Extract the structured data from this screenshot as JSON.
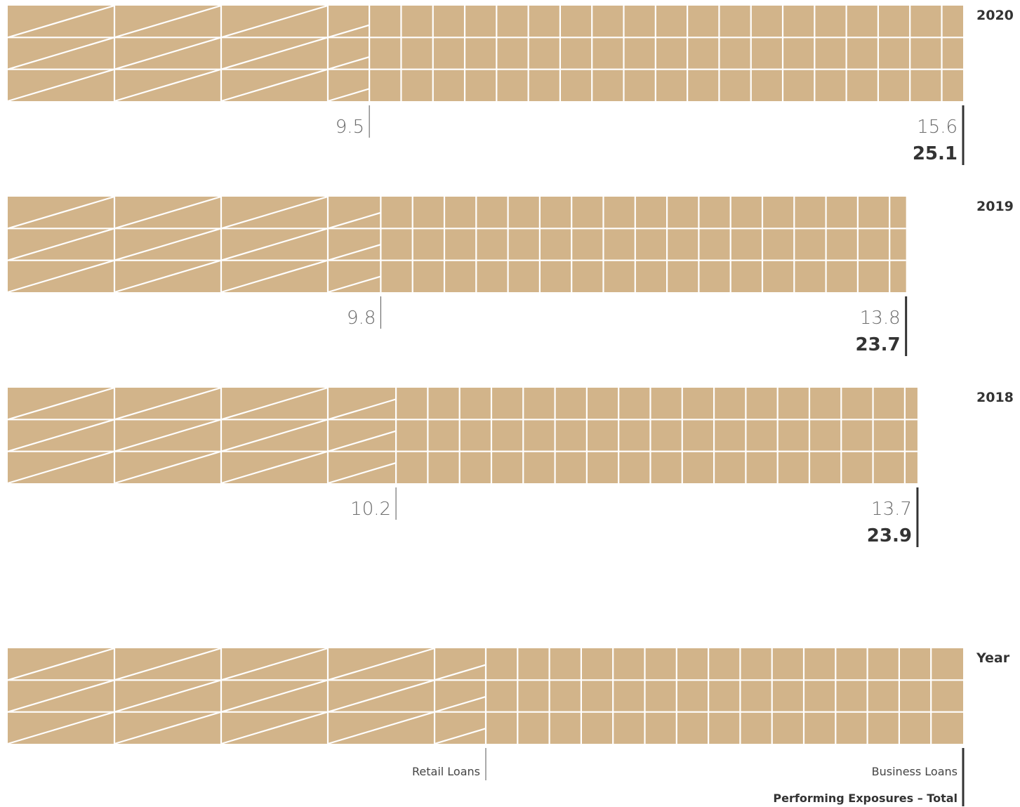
{
  "chart_data": {
    "type": "bar",
    "orientation": "horizontal",
    "stacked": true,
    "categories": [
      "2020",
      "2019",
      "2018"
    ],
    "series": [
      {
        "name": "Retail Loans",
        "values": [
          9.5,
          9.8,
          10.2
        ],
        "color": "#d2b48a",
        "pattern": "diagonal-hatch"
      },
      {
        "name": "Business Loans",
        "values": [
          15.6,
          13.8,
          13.7
        ],
        "color": "#d2b48a",
        "pattern": "grid"
      }
    ],
    "totals": {
      "name": "Performing Exposures – Total",
      "values": [
        25.1,
        23.7,
        23.9
      ]
    },
    "value_labels": {
      "retail": [
        "9.5",
        "9.8",
        "10.2"
      ],
      "business": [
        "15.6",
        "13.8",
        "13.7"
      ],
      "total": [
        "25.1",
        "23.7",
        "23.9"
      ]
    },
    "legend": {
      "category_label": "Year",
      "retail_label": "Retail Loans",
      "business_label": "Business Loans",
      "total_label": "Performing Exposures – Total"
    },
    "colors": {
      "bar": "#d2b48a",
      "pattern_line": "#ffffff",
      "marker": "#333333",
      "marker_light": "#555555"
    }
  }
}
